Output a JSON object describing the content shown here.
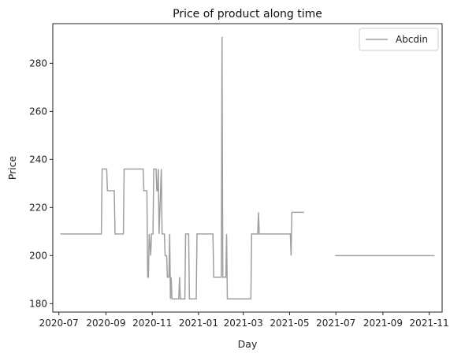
{
  "chart_data": {
    "type": "line",
    "title": "Price of product along time",
    "xlabel": "Day",
    "ylabel": "Price",
    "x_axis": "date",
    "xlim": [
      "2020-06-23",
      "2021-11-18"
    ],
    "ylim": [
      176.5,
      296.5
    ],
    "x_ticks": [
      "2020-07",
      "2020-09",
      "2020-11",
      "2021-01",
      "2021-03",
      "2021-05",
      "2021-07",
      "2021-09",
      "2021-11"
    ],
    "y_ticks": [
      180,
      200,
      220,
      240,
      260,
      280
    ],
    "grid": false,
    "legend": {
      "position": "top-right",
      "entries": [
        "Abcdin"
      ]
    },
    "series": [
      {
        "name": "Abcdin",
        "color": "#a0a0a0",
        "segments": [
          [
            [
              "2020-07-03",
              209
            ],
            [
              "2020-08-26",
              209
            ],
            [
              "2020-08-27",
              236
            ],
            [
              "2020-09-02",
              236
            ],
            [
              "2020-09-03",
              227
            ],
            [
              "2020-09-12",
              227
            ],
            [
              "2020-09-13",
              209
            ],
            [
              "2020-09-24",
              209
            ],
            [
              "2020-09-25",
              236
            ],
            [
              "2020-10-20",
              236
            ],
            [
              "2020-10-21",
              227
            ],
            [
              "2020-10-25",
              227
            ],
            [
              "2020-10-26",
              191
            ],
            [
              "2020-10-27",
              191
            ],
            [
              "2020-10-28",
              209
            ],
            [
              "2020-10-30",
              200
            ],
            [
              "2020-10-31",
              209
            ],
            [
              "2020-11-02",
              209
            ],
            [
              "2020-11-03",
              236
            ],
            [
              "2020-11-06",
              236
            ],
            [
              "2020-11-07",
              227
            ],
            [
              "2020-11-08",
              227
            ],
            [
              "2020-11-09",
              236
            ],
            [
              "2020-11-10",
              209
            ],
            [
              "2020-11-12",
              227
            ],
            [
              "2020-11-13",
              236
            ],
            [
              "2020-11-14",
              209
            ],
            [
              "2020-11-17",
              209
            ],
            [
              "2020-11-18",
              200
            ],
            [
              "2020-11-20",
              200
            ],
            [
              "2020-11-21",
              191
            ],
            [
              "2020-11-23",
              191
            ],
            [
              "2020-11-24",
              209
            ],
            [
              "2020-11-25",
              182
            ],
            [
              "2020-11-26",
              191
            ],
            [
              "2020-11-27",
              182
            ],
            [
              "2020-12-06",
              182
            ],
            [
              "2020-12-07",
              191
            ],
            [
              "2020-12-08",
              182
            ],
            [
              "2020-12-14",
              182
            ],
            [
              "2020-12-15",
              209
            ],
            [
              "2020-12-19",
              209
            ],
            [
              "2020-12-20",
              182
            ],
            [
              "2020-12-29",
              182
            ],
            [
              "2020-12-30",
              209
            ],
            [
              "2021-01-20",
              209
            ],
            [
              "2021-01-21",
              191
            ],
            [
              "2021-01-31",
              191
            ],
            [
              "2021-02-01",
              291
            ],
            [
              "2021-02-02",
              191
            ],
            [
              "2021-02-06",
              191
            ],
            [
              "2021-02-07",
              209
            ],
            [
              "2021-02-08",
              182
            ],
            [
              "2021-03-11",
              182
            ],
            [
              "2021-03-12",
              209
            ],
            [
              "2021-03-20",
              209
            ],
            [
              "2021-03-21",
              218
            ],
            [
              "2021-03-22",
              209
            ],
            [
              "2021-05-02",
              209
            ],
            [
              "2021-05-03",
              200
            ],
            [
              "2021-05-04",
              218
            ],
            [
              "2021-05-20",
              218
            ]
          ],
          [
            [
              "2021-06-30",
              200
            ],
            [
              "2021-11-08",
              200
            ]
          ]
        ]
      }
    ]
  }
}
